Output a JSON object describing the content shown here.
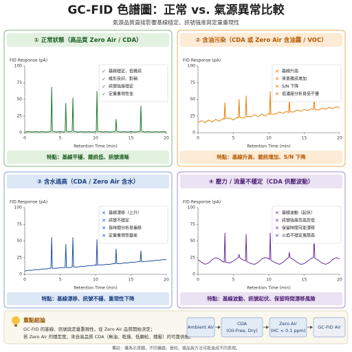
{
  "header": {
    "title": "GC-FID 色譜圖：正常 vs. 氣源異常比較",
    "subtitle": "氣源品質直接影響基線穩定、訊號強度與定量重現性"
  },
  "chart_data": [
    {
      "type": "line",
      "title": "① 正常狀態（高品質 Zero Air / CDA）",
      "ylabel": "FID Response (pA)",
      "xlabel": "Retention Time (min)",
      "xlim": [
        0,
        20
      ],
      "xticks": [
        0,
        5,
        10,
        15,
        20
      ],
      "ylim": [
        0,
        100
      ],
      "yticks": [
        0,
        25,
        50,
        75,
        100
      ],
      "note_icon": "✓",
      "notes": [
        "基線穩定、低雜訊",
        "峰形良好、對稱",
        "訊號強度穩定",
        "定量重現性佳"
      ],
      "caption": "特點：基線平穩、雜訊低、訊號清晰",
      "x": [
        0,
        0.5,
        1,
        1.5,
        2,
        2.5,
        3,
        3.5,
        3.7,
        3.8,
        3.9,
        4.5,
        5,
        5.5,
        5.7,
        5.8,
        5.9,
        6.3,
        6.7,
        6.8,
        6.9,
        7.5,
        8,
        8.5,
        9,
        9.5,
        10,
        10.1,
        10.2,
        10.3,
        11,
        11.5,
        12,
        12.5,
        12.8,
        12.9,
        13,
        13.5,
        14,
        14.5,
        15,
        15.5,
        16,
        16.3,
        16.4,
        16.5,
        17,
        17.5,
        18,
        18.5,
        19,
        19.5,
        20
      ],
      "series": [
        {
          "color": "#1b7a2a",
          "values": [
            1,
            1.5,
            1,
            1.5,
            1,
            1.5,
            1,
            1.5,
            2,
            68,
            2,
            1,
            1.5,
            1,
            2,
            44,
            2,
            1.5,
            2,
            52,
            2,
            1,
            1.5,
            1,
            1.5,
            1,
            1.5,
            2,
            62,
            2,
            1,
            1.5,
            1,
            1.5,
            2,
            20,
            2,
            1,
            1.5,
            1,
            1.5,
            1,
            1.5,
            2,
            40,
            2,
            1,
            1.5,
            1,
            1.5,
            1,
            1.5,
            1
          ]
        }
      ]
    },
    {
      "type": "line",
      "title": "② 含油污染（CDA 或 Zero Air 含油霧 / VOC）",
      "ylabel": "FID Response (pA)",
      "xlabel": "Retention Time (min)",
      "xlim": [
        0,
        20
      ],
      "xticks": [
        0,
        5,
        10,
        15,
        20
      ],
      "ylim": [
        0,
        100
      ],
      "yticks": [
        0,
        25,
        50,
        75,
        100
      ],
      "note_icon": "✕",
      "notes": [
        "基線升高",
        "背景雜訊增加",
        "S/N 下降",
        "低濃度分析易受干擾"
      ],
      "caption": "特點：基線升高、雜訊增加、S/N 下降",
      "x": [
        0,
        0.5,
        1,
        1.5,
        2,
        2.5,
        3,
        3.5,
        3.7,
        3.8,
        3.9,
        4.5,
        5,
        5.5,
        5.7,
        5.8,
        5.9,
        6.3,
        6.7,
        6.8,
        6.9,
        7.5,
        8,
        8.5,
        9,
        9.5,
        10,
        10.1,
        10.2,
        10.3,
        11,
        11.5,
        12,
        12.5,
        12.8,
        12.9,
        13,
        13.5,
        14,
        14.5,
        15,
        15.5,
        16,
        16.3,
        16.4,
        16.5,
        17,
        17.5,
        18,
        18.5,
        19,
        19.5,
        20
      ],
      "series": [
        {
          "color": "#e67e00",
          "values": [
            15,
            18,
            15,
            19,
            16,
            20,
            17,
            21,
            20,
            45,
            21,
            22,
            19,
            23,
            22,
            50,
            23,
            22,
            23,
            55,
            24,
            24,
            27,
            24,
            28,
            25,
            29,
            27,
            62,
            28,
            28,
            31,
            29,
            32,
            30,
            50,
            31,
            31,
            34,
            32,
            35,
            33,
            36,
            35,
            56,
            35,
            34,
            37,
            35,
            38,
            36,
            39,
            37
          ]
        }
      ]
    },
    {
      "type": "line",
      "title": "③ 含水過高（CDA / Zero Air 含水）",
      "ylabel": "FID Response (pA)",
      "xlabel": "Retention Time (min)",
      "xlim": [
        0,
        20
      ],
      "xticks": [
        0,
        5,
        10,
        15,
        20
      ],
      "ylim": [
        0,
        100
      ],
      "yticks": [
        0,
        25,
        50,
        75,
        100
      ],
      "note_icon": "✕",
      "notes": [
        "基線漂移（上升）",
        "訊號不穩定",
        "長時間分析易偏移",
        "定量重現性變差"
      ],
      "caption": "特點：基線漂移、訊號不穩、重現性下降",
      "x": [
        0,
        0.5,
        1,
        1.5,
        2,
        2.5,
        3,
        3.5,
        3.7,
        3.8,
        3.9,
        4.5,
        5,
        5.5,
        5.7,
        5.8,
        5.9,
        6.3,
        6.7,
        6.8,
        6.9,
        7.5,
        8,
        8.5,
        9,
        9.5,
        10,
        10.1,
        10.2,
        10.3,
        11,
        11.5,
        12,
        12.5,
        12.8,
        12.9,
        13,
        13.5,
        14,
        14.5,
        15,
        15.5,
        16,
        16.3,
        16.4,
        16.5,
        17,
        17.5,
        18,
        18.5,
        19,
        19.5,
        20
      ],
      "series": [
        {
          "color": "#1f4fa0",
          "values": [
            5,
            6,
            6,
            7,
            7,
            8,
            8,
            9,
            9,
            55,
            9,
            9,
            10,
            10,
            10,
            45,
            10,
            10,
            11,
            55,
            11,
            11,
            12,
            12,
            13,
            13,
            14,
            13,
            52,
            14,
            14,
            15,
            15,
            16,
            16,
            38,
            16,
            16,
            17,
            17,
            18,
            18,
            19,
            19,
            35,
            19,
            19,
            20,
            20,
            21,
            21,
            22,
            22
          ]
        }
      ]
    },
    {
      "type": "line",
      "title": "④ 壓力 / 流量不穩定（CDA 供壓波動）",
      "ylabel": "FID Response (pA)",
      "xlabel": "Retention Time (min)",
      "xlim": [
        0,
        20
      ],
      "xticks": [
        0,
        5,
        10,
        15,
        20
      ],
      "ylim": [
        0,
        100
      ],
      "yticks": [
        0,
        25,
        50,
        75,
        100
      ],
      "note_icon": "✕",
      "notes": [
        "基線波動（起伏）",
        "訊號強度忽高忽低",
        "保留時間可能漂移",
        "火焰不穩定風險高"
      ],
      "caption": "特點：基線波動、訊號起伏、保留時間漂移風險",
      "x": [
        0,
        0.5,
        1,
        1.5,
        2,
        2.5,
        3,
        3.5,
        3.7,
        3.8,
        3.9,
        4.5,
        5,
        5.5,
        5.7,
        5.8,
        5.9,
        6.3,
        6.7,
        6.8,
        6.9,
        7.5,
        8,
        8.5,
        9,
        9.5,
        10,
        10.1,
        10.2,
        10.3,
        11,
        11.5,
        12,
        12.5,
        12.8,
        12.9,
        13,
        13.5,
        14,
        14.5,
        15,
        15.5,
        16,
        16.3,
        16.4,
        16.5,
        17,
        17.5,
        18,
        18.5,
        19,
        19.5,
        20
      ],
      "series": [
        {
          "color": "#6a2c9a",
          "values": [
            22,
            18,
            15,
            17,
            22,
            25,
            23,
            19,
            18,
            62,
            18,
            17,
            20,
            24,
            25,
            30,
            25,
            22,
            20,
            60,
            19,
            16,
            15,
            18,
            23,
            25,
            24,
            22,
            62,
            21,
            17,
            15,
            18,
            23,
            25,
            33,
            25,
            22,
            18,
            15,
            16,
            20,
            24,
            25,
            55,
            24,
            21,
            17,
            15,
            17,
            22,
            25,
            23
          ]
        }
      ]
    }
  ],
  "conclusion": {
    "title": "重點結論",
    "lines": [
      "GC-FID 的基線、訊號與定量重現性，從 Zero Air 品質開始決定；",
      "若 Zero Air 的穩定度，來自高品質 CDA（無油、乾燥、低顆粒、穩壓）的可靠供應。"
    ]
  },
  "flow": [
    {
      "label": "Ambient Air"
    },
    {
      "label": "CDA",
      "sub": "(Oil-Free, Dry)"
    },
    {
      "label": "Zero Air",
      "sub": "(HC < 0.1 ppm)"
    },
    {
      "label": "GC-FID Air"
    }
  ],
  "footnote": "備註：僅為示意圖，不同儀器、管柱、樣品與方法可能造成不同表現。"
}
